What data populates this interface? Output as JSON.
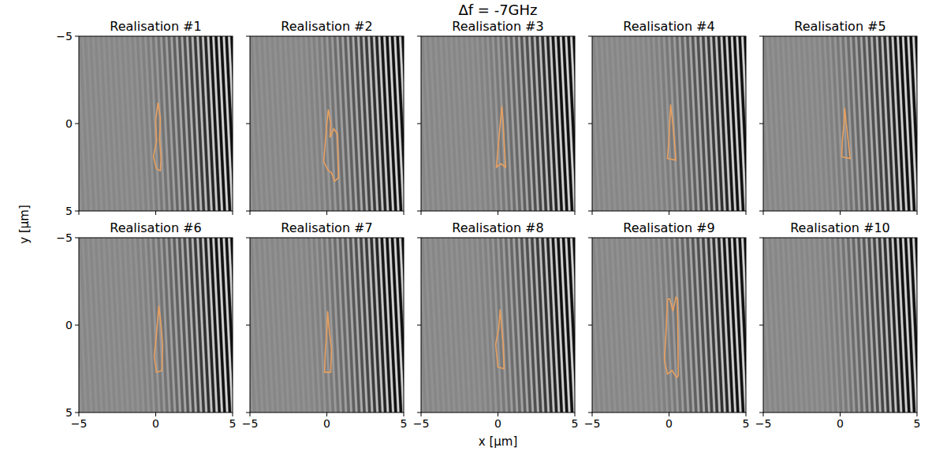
{
  "chart_data": {
    "type": "image",
    "title": "Δf = -7GHz",
    "xlabel": "x [μm]",
    "ylabel": "y [μm]",
    "xlim": [
      -5,
      5
    ],
    "ylim": [
      5,
      -5
    ],
    "xticks": [
      -5,
      0,
      5
    ],
    "yticks": [
      -5,
      0,
      5
    ],
    "color": "#e8a060",
    "panels": [
      {
        "title": "Realisation #1",
        "outlines": [
          {
            "x": [
              0.15,
              0.3,
              0.25,
              0.35,
              0.3,
              0.05,
              -0.15,
              0.05,
              0.0,
              0.15
            ],
            "y": [
              -1.2,
              -0.3,
              0.9,
              2.0,
              2.7,
              2.6,
              1.9,
              1.0,
              -0.2,
              -1.2
            ]
          }
        ]
      },
      {
        "title": "Realisation #2",
        "outlines": [
          {
            "x": [
              0.1,
              0.25,
              0.2,
              0.45,
              0.7,
              0.75,
              0.5,
              0.3,
              0.1,
              -0.2,
              -0.1,
              0.0,
              0.1
            ],
            "y": [
              -0.8,
              0.0,
              0.8,
              0.3,
              0.6,
              3.1,
              3.3,
              2.8,
              2.7,
              2.2,
              1.0,
              0.0,
              -0.8
            ]
          }
        ]
      },
      {
        "title": "Realisation #3",
        "outlines": [
          {
            "x": [
              0.25,
              0.35,
              0.4,
              0.5,
              0.2,
              -0.1,
              0.05,
              0.15,
              0.25
            ],
            "y": [
              -1.0,
              0.0,
              1.0,
              2.5,
              2.3,
              2.5,
              1.0,
              0.0,
              -1.0
            ]
          }
        ]
      },
      {
        "title": "Realisation #4",
        "outlines": [
          {
            "x": [
              0.1,
              0.25,
              0.35,
              0.45,
              -0.1,
              0.0,
              0.1
            ],
            "y": [
              -1.1,
              0.0,
              1.0,
              2.1,
              2.0,
              0.8,
              -1.1
            ]
          }
        ]
      },
      {
        "title": "Realisation #5",
        "outlines": [
          {
            "x": [
              0.3,
              0.4,
              0.5,
              0.65,
              0.1,
              0.15,
              0.25,
              0.3
            ],
            "y": [
              -0.9,
              0.0,
              0.8,
              2.0,
              1.9,
              0.9,
              0.0,
              -0.9
            ]
          }
        ]
      },
      {
        "title": "Realisation #6",
        "outlines": [
          {
            "x": [
              0.2,
              0.35,
              0.45,
              0.4,
              0.05,
              -0.1,
              0.05,
              0.2
            ],
            "y": [
              -1.1,
              0.0,
              1.2,
              2.6,
              2.7,
              1.8,
              0.5,
              -1.1
            ]
          }
        ]
      },
      {
        "title": "Realisation #7",
        "outlines": [
          {
            "x": [
              0.05,
              0.15,
              0.3,
              0.25,
              -0.15,
              -0.1,
              0.0,
              0.05
            ],
            "y": [
              -0.8,
              0.2,
              1.4,
              2.7,
              2.7,
              1.5,
              0.3,
              -0.8
            ]
          }
        ]
      },
      {
        "title": "Realisation #8",
        "outlines": [
          {
            "x": [
              0.15,
              0.25,
              0.35,
              0.4,
              0.0,
              -0.15,
              0.05,
              0.15
            ],
            "y": [
              -0.9,
              0.2,
              1.2,
              2.5,
              2.4,
              1.1,
              0.2,
              -0.9
            ]
          }
        ]
      },
      {
        "title": "Realisation #9",
        "outlines": [
          {
            "x": [
              -0.1,
              0.05,
              0.25,
              0.45,
              0.55,
              0.6,
              0.5,
              0.2,
              -0.1,
              -0.3,
              -0.2,
              -0.1
            ],
            "y": [
              -1.5,
              -1.5,
              -0.8,
              -1.6,
              -1.5,
              2.9,
              3.0,
              2.6,
              2.8,
              2.0,
              0.5,
              -1.5
            ]
          }
        ]
      },
      {
        "title": "Realisation #10",
        "outlines": []
      }
    ]
  }
}
